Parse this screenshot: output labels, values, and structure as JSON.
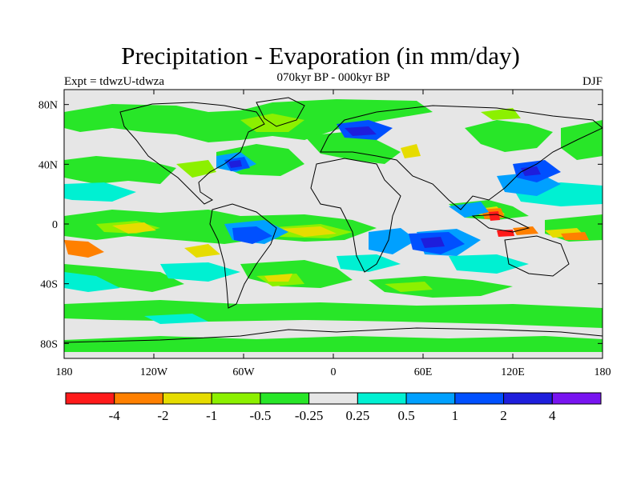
{
  "title": "Precipitation - Evaporation (in mm/day)",
  "subtitle": "070kyr BP - 000kyr BP",
  "left_label": "Expt = tdwzU-tdwza",
  "right_label": "DJF",
  "map": {
    "lat_range": [
      -90,
      90
    ],
    "lon_range": [
      -180,
      180
    ],
    "y_ticks": [
      {
        "lat": 80,
        "label": "80N"
      },
      {
        "lat": 40,
        "label": "40N"
      },
      {
        "lat": 0,
        "label": "0"
      },
      {
        "lat": -40,
        "label": "40S"
      },
      {
        "lat": -80,
        "label": "80S"
      }
    ],
    "x_ticks": [
      {
        "lon": -180,
        "label": "180"
      },
      {
        "lon": -120,
        "label": "120W"
      },
      {
        "lon": -60,
        "label": "60W"
      },
      {
        "lon": 0,
        "label": "0"
      },
      {
        "lon": 60,
        "label": "60E"
      },
      {
        "lon": 120,
        "label": "120E"
      },
      {
        "lon": 180,
        "label": "180"
      }
    ],
    "land_color": "#e6e6e6",
    "coast_color": "#000000"
  },
  "colorbar": {
    "colors": [
      "#ff1a1a",
      "#ff8000",
      "#e6dc00",
      "#8cf000",
      "#28e628",
      "#e6e6e6",
      "#00f0d2",
      "#00a0ff",
      "#0050ff",
      "#1e1edc",
      "#7814f0"
    ],
    "labels": [
      "-4",
      "-2",
      "-1",
      "-0.5",
      "-0.25",
      "0.25",
      "0.5",
      "1",
      "2",
      "4"
    ]
  }
}
